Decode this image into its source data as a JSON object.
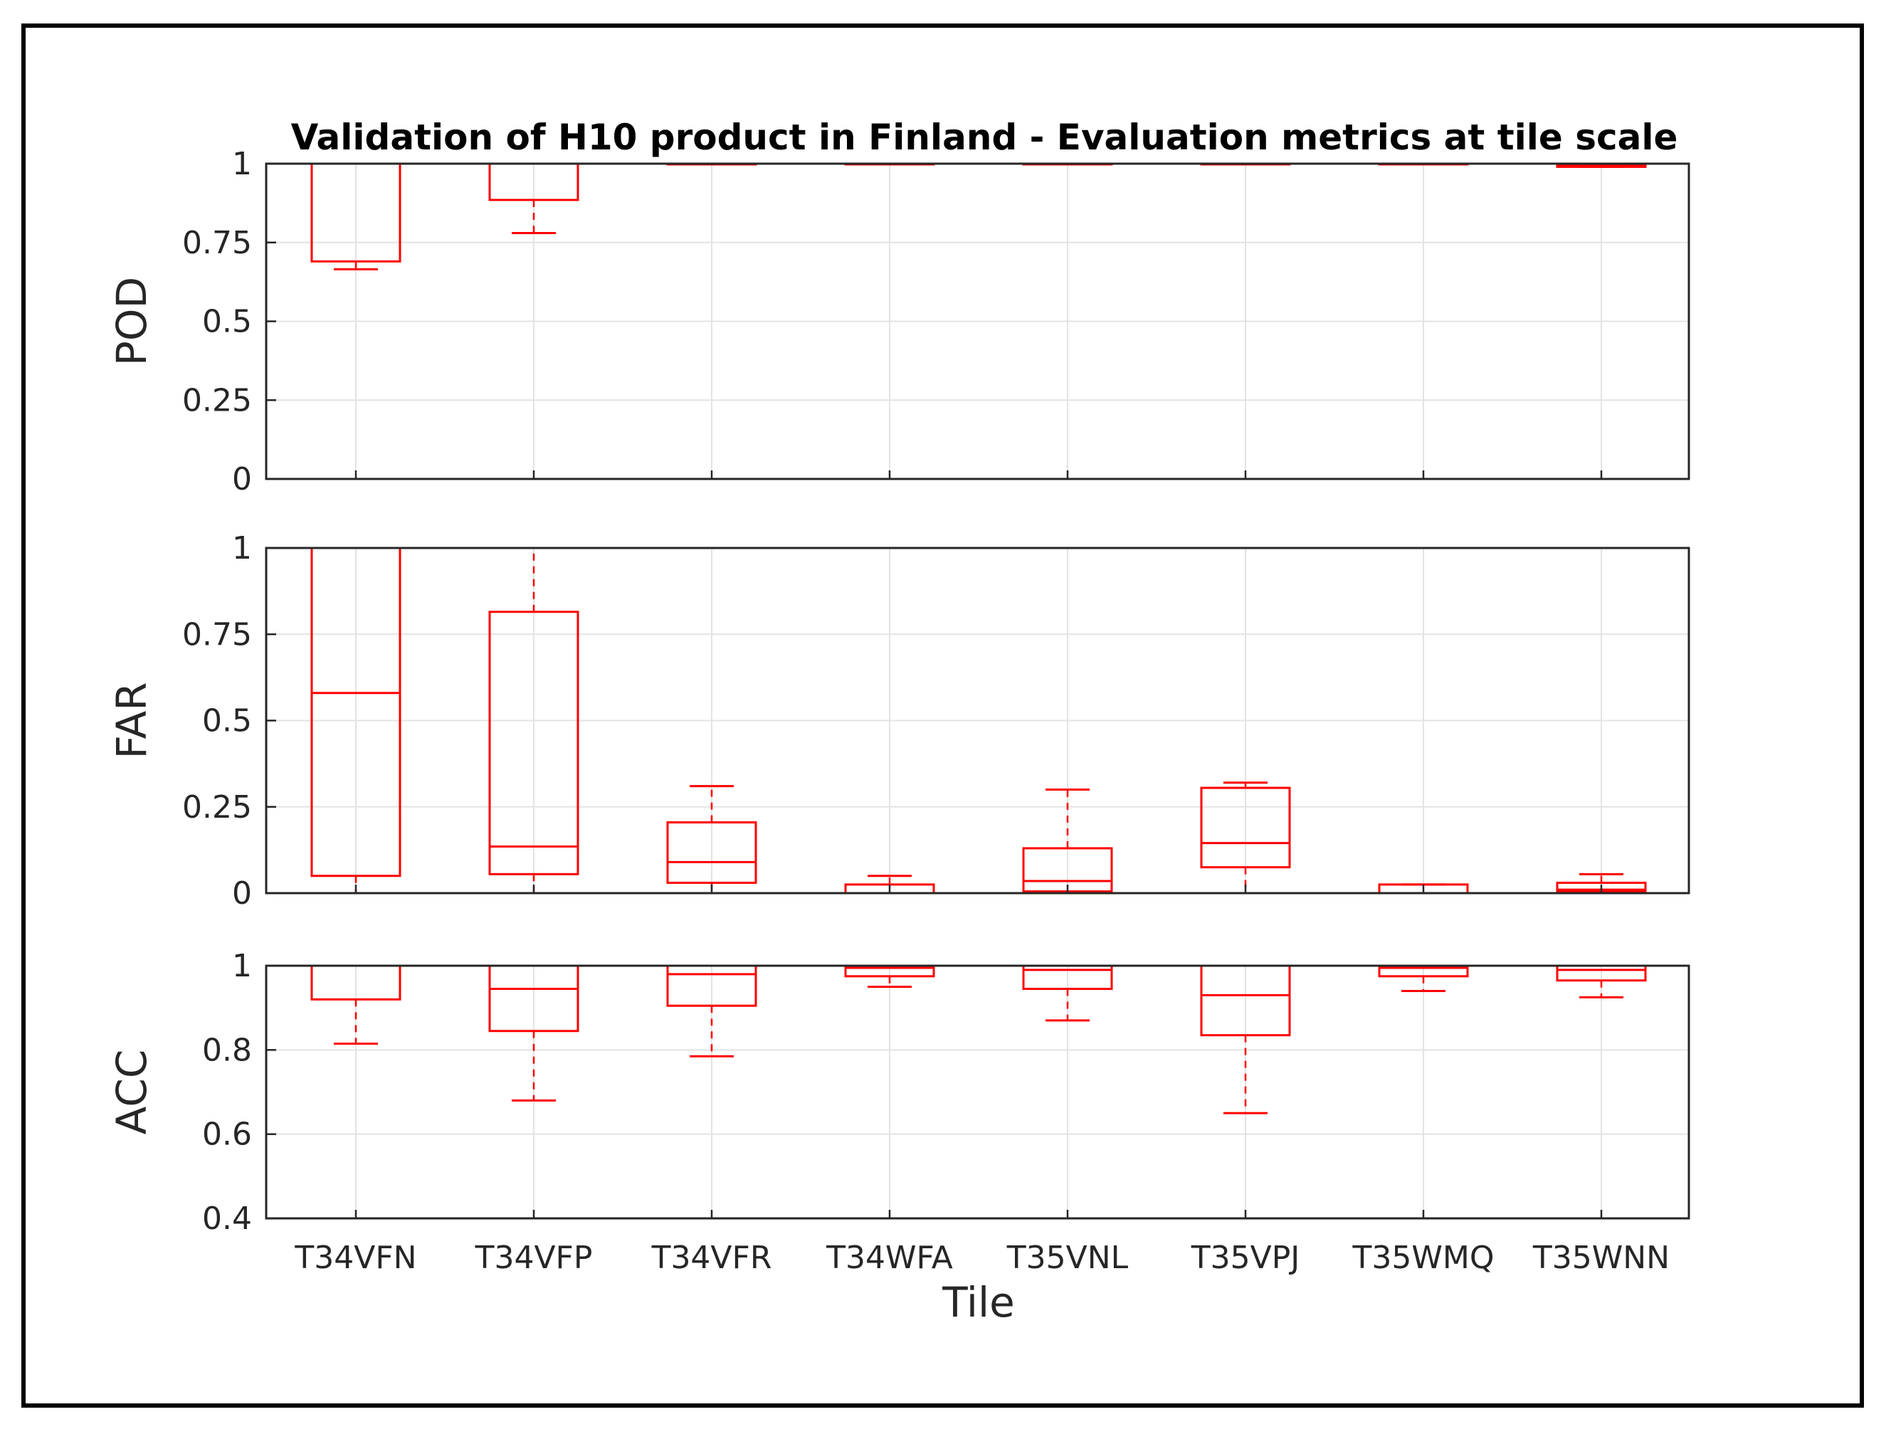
{
  "chart_data": {
    "type": "boxplot",
    "title": "Validation of H10 product in Finland - Evaluation metrics at tile scale",
    "xlabel": "Tile",
    "categories": [
      "T34VFN",
      "T34VFP",
      "T34VFR",
      "T34WFA",
      "T35VNL",
      "T35VPJ",
      "T35WMQ",
      "T35WNN"
    ],
    "colors": {
      "box": "#ff0000",
      "grid": "#e3e3e3",
      "axis": "#262626"
    },
    "panels": [
      {
        "ylabel": "POD",
        "ylim": [
          0,
          1
        ],
        "yticks": [
          0,
          0.25,
          0.5,
          0.75,
          1
        ],
        "ytick_labels": [
          "0",
          "0.25",
          "0.5",
          "0.75",
          "1"
        ],
        "boxes": [
          {
            "lw": 0.665,
            "q1": 0.69,
            "med": 1.0,
            "q3": 1.0,
            "uw": 1.0
          },
          {
            "lw": 0.78,
            "q1": 0.885,
            "med": 1.0,
            "q3": 1.0,
            "uw": 1.0
          },
          {
            "lw": 1.0,
            "q1": 1.0,
            "med": 1.0,
            "q3": 1.0,
            "uw": 1.0
          },
          {
            "lw": 1.0,
            "q1": 1.0,
            "med": 1.0,
            "q3": 1.0,
            "uw": 1.0
          },
          {
            "lw": 1.0,
            "q1": 1.0,
            "med": 1.0,
            "q3": 1.0,
            "uw": 1.0
          },
          {
            "lw": 1.0,
            "q1": 1.0,
            "med": 1.0,
            "q3": 1.0,
            "uw": 1.0
          },
          {
            "lw": 1.0,
            "q1": 1.0,
            "med": 1.0,
            "q3": 1.0,
            "uw": 1.0
          },
          {
            "lw": 0.99,
            "q1": 0.99,
            "med": 0.995,
            "q3": 1.0,
            "uw": 1.0
          }
        ]
      },
      {
        "ylabel": "FAR",
        "ylim": [
          0,
          1
        ],
        "yticks": [
          0,
          0.25,
          0.5,
          0.75,
          1
        ],
        "ytick_labels": [
          "0",
          "0.25",
          "0.5",
          "0.75",
          "1"
        ],
        "boxes": [
          {
            "lw": 0.0,
            "q1": 0.05,
            "med": 0.58,
            "q3": 1.0,
            "uw": 1.0
          },
          {
            "lw": 0.0,
            "q1": 0.055,
            "med": 0.135,
            "q3": 0.815,
            "uw": 1.0
          },
          {
            "lw": 0.0,
            "q1": 0.03,
            "med": 0.09,
            "q3": 0.205,
            "uw": 0.31
          },
          {
            "lw": 0.0,
            "q1": 0.0,
            "med": 0.0,
            "q3": 0.025,
            "uw": 0.05
          },
          {
            "lw": 0.0,
            "q1": 0.005,
            "med": 0.035,
            "q3": 0.13,
            "uw": 0.3
          },
          {
            "lw": 0.0,
            "q1": 0.075,
            "med": 0.145,
            "q3": 0.305,
            "uw": 0.32
          },
          {
            "lw": 0.0,
            "q1": 0.0,
            "med": 0.0,
            "q3": 0.025,
            "uw": 0.025
          },
          {
            "lw": 0.0,
            "q1": 0.005,
            "med": 0.01,
            "q3": 0.03,
            "uw": 0.055
          }
        ]
      },
      {
        "ylabel": "ACC",
        "ylim": [
          0.4,
          1
        ],
        "yticks": [
          0.4,
          0.6,
          0.8,
          1
        ],
        "ytick_labels": [
          "0.4",
          "0.6",
          "0.8",
          "1"
        ],
        "boxes": [
          {
            "lw": 0.815,
            "q1": 0.92,
            "med": 1.0,
            "q3": 1.0,
            "uw": 1.0
          },
          {
            "lw": 0.68,
            "q1": 0.845,
            "med": 0.945,
            "q3": 1.0,
            "uw": 1.0
          },
          {
            "lw": 0.785,
            "q1": 0.905,
            "med": 0.98,
            "q3": 1.0,
            "uw": 1.0
          },
          {
            "lw": 0.95,
            "q1": 0.975,
            "med": 0.995,
            "q3": 1.0,
            "uw": 1.0
          },
          {
            "lw": 0.87,
            "q1": 0.945,
            "med": 0.99,
            "q3": 1.0,
            "uw": 1.0
          },
          {
            "lw": 0.65,
            "q1": 0.835,
            "med": 0.93,
            "q3": 1.0,
            "uw": 1.0
          },
          {
            "lw": 0.94,
            "q1": 0.975,
            "med": 0.995,
            "q3": 1.0,
            "uw": 1.0
          },
          {
            "lw": 0.925,
            "q1": 0.965,
            "med": 0.99,
            "q3": 1.0,
            "uw": 1.0
          }
        ]
      }
    ]
  }
}
